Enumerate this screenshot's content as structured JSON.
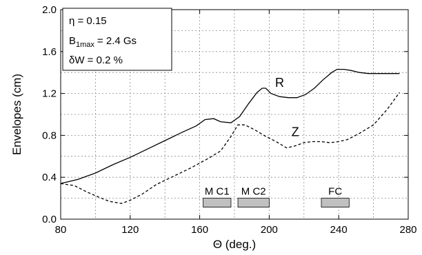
{
  "chart_data": {
    "type": "line",
    "xlabel": "Θ (deg.)",
    "ylabel": "Envelopes (cm)",
    "xlim": [
      80,
      280
    ],
    "ylim": [
      0.0,
      2.0
    ],
    "xticks": [
      "80",
      "120",
      "160",
      "200",
      "240",
      "280"
    ],
    "yticks": [
      "0.0",
      "0.4",
      "0.8",
      "1.2",
      "1.6",
      "2.0"
    ],
    "grid": true,
    "params": [
      "η = 0.15",
      "B",
      "1max",
      "= 2.4 Gs",
      "δW = 0.2 %"
    ],
    "series": [
      {
        "name": "R",
        "style": "solid",
        "x": [
          80,
          90,
          100,
          110,
          120,
          130,
          140,
          150,
          158,
          163,
          168,
          172,
          178,
          183,
          188,
          193,
          196,
          198,
          201,
          206,
          211,
          216,
          221,
          226,
          231,
          236,
          239,
          243,
          247,
          252,
          257,
          262,
          268,
          275
        ],
        "y": [
          0.34,
          0.38,
          0.44,
          0.52,
          0.59,
          0.67,
          0.75,
          0.83,
          0.89,
          0.95,
          0.96,
          0.93,
          0.92,
          0.98,
          1.1,
          1.21,
          1.25,
          1.25,
          1.2,
          1.17,
          1.16,
          1.16,
          1.19,
          1.25,
          1.33,
          1.4,
          1.43,
          1.43,
          1.42,
          1.4,
          1.39,
          1.39,
          1.39,
          1.39
        ]
      },
      {
        "name": "Z",
        "style": "dashed",
        "x": [
          80,
          88,
          95,
          102,
          108,
          115,
          120,
          127,
          135,
          145,
          155,
          165,
          172,
          178,
          182,
          186,
          192,
          198,
          204,
          210,
          215,
          220,
          225,
          230,
          235,
          240,
          245,
          252,
          260,
          268,
          275
        ],
        "y": [
          0.34,
          0.32,
          0.26,
          0.21,
          0.17,
          0.15,
          0.18,
          0.24,
          0.33,
          0.41,
          0.49,
          0.58,
          0.65,
          0.79,
          0.9,
          0.9,
          0.85,
          0.79,
          0.74,
          0.68,
          0.7,
          0.73,
          0.74,
          0.74,
          0.73,
          0.74,
          0.76,
          0.82,
          0.9,
          1.05,
          1.21
        ]
      }
    ],
    "annotations": [
      {
        "label": "M C1",
        "x_start": 162,
        "x_end": 178,
        "y": 0.2
      },
      {
        "label": "M C2",
        "x_start": 182,
        "x_end": 200,
        "y": 0.2
      },
      {
        "label": "FC",
        "x_start": 230,
        "x_end": 246,
        "y": 0.2
      }
    ],
    "colors": {
      "line": "#000000",
      "bar_fill": "#c0c0c0",
      "grid": "#888888"
    }
  }
}
